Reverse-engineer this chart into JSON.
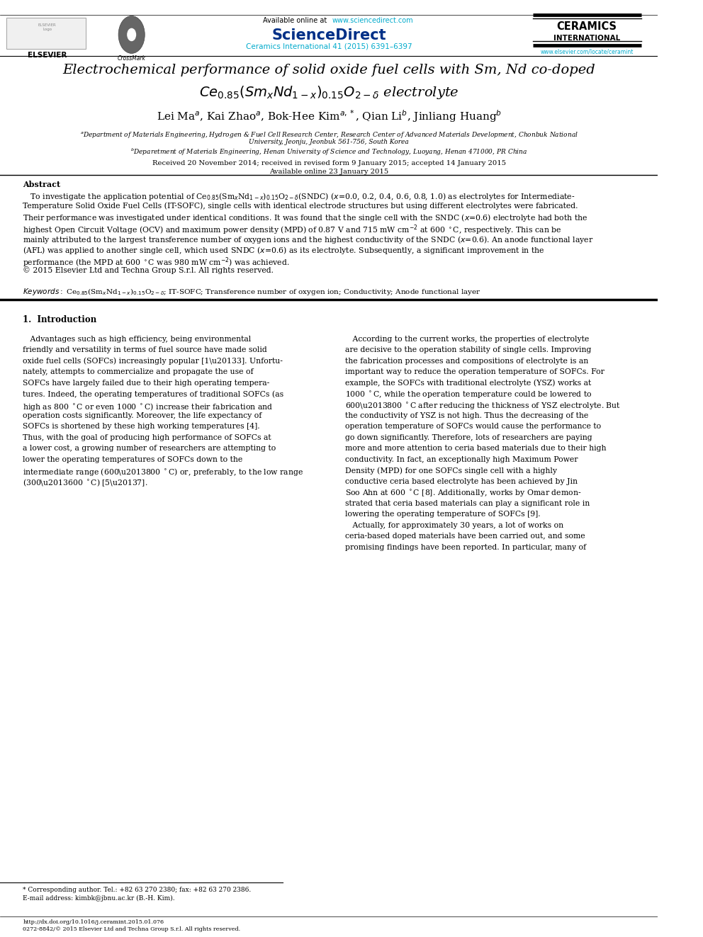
{
  "bg_color": "#ffffff",
  "link_color": "#00aacc",
  "text_color": "#000000",
  "title_line1": "Electrochemical performance of solid oxide fuel cells with Sm, Nd co-doped",
  "received": "Received 20 November 2014; received in revised form 9 January 2015; accepted 14 January 2015",
  "available": "Available online 23 January 2015",
  "footnote_star": "* Corresponding author. Tel.: +82 63 270 2380; fax: +82 63 270 2386.",
  "footnote_email": "E-mail address: kimbk@jbnu.ac.kr (B.-H. Kim).",
  "doi": "http://dx.doi.org/10.1016/j.ceramint.2015.01.076",
  "issn": "0272-8842/© 2015 Elsevier Ltd and Techna Group S.r.l. All rights reserved."
}
